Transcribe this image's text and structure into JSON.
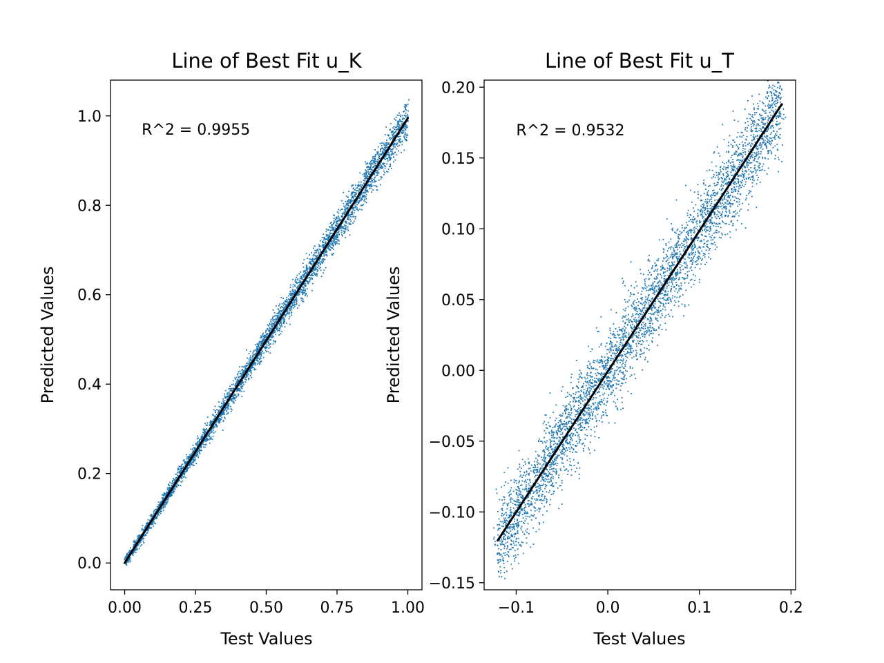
{
  "figure": {
    "background": "#ffffff",
    "point_color": "#1f77b4",
    "fit_color": "#000000"
  },
  "chart_data": [
    {
      "type": "scatter",
      "title": "Line of Best Fit u_K",
      "xlabel": "Test Values",
      "ylabel": "Predicted Values",
      "xlim": [
        -0.05,
        1.05
      ],
      "ylim": [
        -0.06,
        1.08
      ],
      "xticks": [
        0.0,
        0.25,
        0.5,
        0.75,
        1.0
      ],
      "xtick_labels": [
        "0.00",
        "0.25",
        "0.50",
        "0.75",
        "1.00"
      ],
      "yticks": [
        0.0,
        0.2,
        0.4,
        0.6,
        0.8,
        1.0
      ],
      "ytick_labels": [
        "0.0",
        "0.2",
        "0.4",
        "0.6",
        "0.8",
        "1.0"
      ],
      "annotation": {
        "text": "R^2 = 0.9955",
        "x": 0.06,
        "y": 0.97
      },
      "fit_line": {
        "x": [
          0.0,
          1.0
        ],
        "y": [
          0.0,
          0.995
        ]
      },
      "point_distribution": {
        "x_range": [
          0.0,
          1.0
        ],
        "slope": 0.995,
        "intercept": 0.0,
        "spread_start": 0.006,
        "spread_end": 0.022
      },
      "grid": false
    },
    {
      "type": "scatter",
      "title": "Line of Best Fit u_T",
      "xlabel": "Test Values",
      "ylabel": "Predicted Values",
      "xlim": [
        -0.135,
        0.205
      ],
      "ylim": [
        -0.155,
        0.205
      ],
      "xticks": [
        -0.1,
        0.0,
        0.1,
        0.2
      ],
      "xtick_labels": [
        "−0.1",
        "0.0",
        "0.1",
        "0.2"
      ],
      "yticks": [
        -0.15,
        -0.1,
        -0.05,
        0.0,
        0.05,
        0.1,
        0.15,
        0.2
      ],
      "ytick_labels": [
        "−0.15",
        "−0.10",
        "−0.05",
        "0.00",
        "0.05",
        "0.10",
        "0.15",
        "0.20"
      ],
      "annotation": {
        "text": "R^2 = 0.9532",
        "x": -0.1,
        "y": 0.17
      },
      "fit_line": {
        "x": [
          -0.12,
          0.19
        ],
        "y": [
          -0.12,
          0.188
        ]
      },
      "point_distribution": {
        "x_range": [
          -0.12,
          0.19
        ],
        "slope": 0.994,
        "intercept": -0.001,
        "spread_start": 0.015,
        "spread_end": 0.015
      },
      "grid": false
    }
  ]
}
